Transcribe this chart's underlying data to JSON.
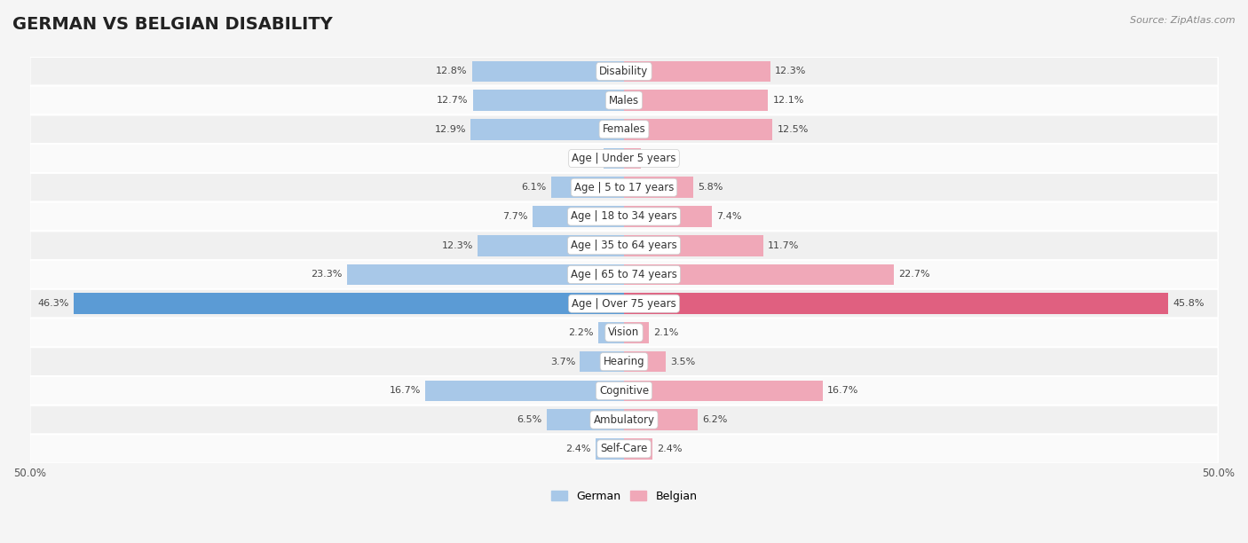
{
  "title": "GERMAN VS BELGIAN DISABILITY",
  "source": "Source: ZipAtlas.com",
  "categories": [
    "Disability",
    "Males",
    "Females",
    "Age | Under 5 years",
    "Age | 5 to 17 years",
    "Age | 18 to 34 years",
    "Age | 35 to 64 years",
    "Age | 65 to 74 years",
    "Age | Over 75 years",
    "Vision",
    "Hearing",
    "Cognitive",
    "Ambulatory",
    "Self-Care"
  ],
  "german_values": [
    12.8,
    12.7,
    12.9,
    1.7,
    6.1,
    7.7,
    12.3,
    23.3,
    46.3,
    2.2,
    3.7,
    16.7,
    6.5,
    2.4
  ],
  "belgian_values": [
    12.3,
    12.1,
    12.5,
    1.4,
    5.8,
    7.4,
    11.7,
    22.7,
    45.8,
    2.1,
    3.5,
    16.7,
    6.2,
    2.4
  ],
  "german_color_normal": "#a8c8e8",
  "belgian_color_normal": "#f0a8b8",
  "german_color_strong": "#5b9bd5",
  "belgian_color_strong": "#e06080",
  "strong_row": 8,
  "bar_height": 0.72,
  "xlim": 50.0,
  "background_color": "#f5f5f5",
  "row_colors": [
    "#f0f0f0",
    "#fafafa"
  ],
  "title_fontsize": 14,
  "label_fontsize": 8.5,
  "value_fontsize": 8,
  "legend_fontsize": 9,
  "x_tick_positions": [
    -50,
    50
  ],
  "x_tick_labels": [
    "50.0%",
    "50.0%"
  ]
}
